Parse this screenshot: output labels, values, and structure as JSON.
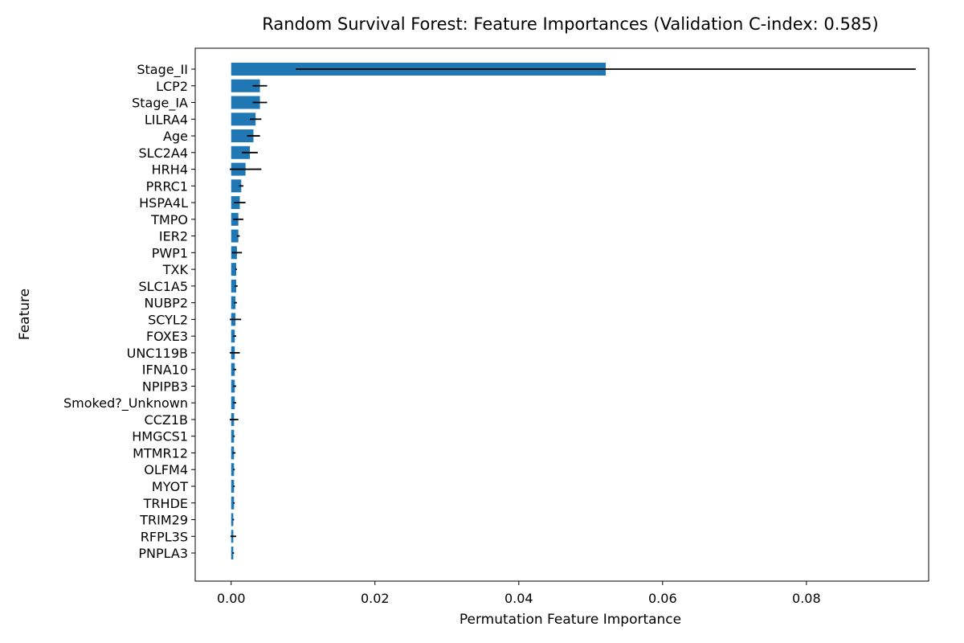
{
  "chart_data": {
    "type": "bar",
    "orientation": "horizontal",
    "title": "Random Survival Forest: Feature Importances (Validation C-index: 0.585)",
    "xlabel": "Permutation Feature Importance",
    "ylabel": "Feature",
    "xlim": [
      -0.005,
      0.097
    ],
    "xticks": [
      0.0,
      0.02,
      0.04,
      0.06,
      0.08
    ],
    "xtick_labels": [
      "0.00",
      "0.02",
      "0.04",
      "0.06",
      "0.08"
    ],
    "bar_color": "#1f77b4",
    "error_color": "#000000",
    "categories": [
      "Stage_II",
      "LCP2",
      "Stage_IA",
      "LILRA4",
      "Age",
      "SLC2A4",
      "HRH4",
      "PRRC1",
      "HSPA4L",
      "TMPO",
      "IER2",
      "PWP1",
      "TXK",
      "SLC1A5",
      "NUBP2",
      "SCYL2",
      "FOXE3",
      "UNC119B",
      "IFNA10",
      "NPIPB3",
      "Smoked?_Unknown",
      "CCZ1B",
      "HMGCS1",
      "MTMR12",
      "OLFM4",
      "MYOT",
      "TRHDE",
      "TRIM29",
      "RFPL3S",
      "PNPLA3"
    ],
    "values": [
      0.0521,
      0.004,
      0.004,
      0.0034,
      0.0031,
      0.0026,
      0.002,
      0.0014,
      0.0012,
      0.001,
      0.001,
      0.0008,
      0.0007,
      0.0007,
      0.0006,
      0.0006,
      0.0005,
      0.0005,
      0.0005,
      0.0005,
      0.0005,
      0.0004,
      0.0004,
      0.0004,
      0.0004,
      0.0004,
      0.0004,
      0.0003,
      0.0003,
      0.0003
    ],
    "errors": [
      0.0431,
      0.001,
      0.001,
      0.0008,
      0.0009,
      0.0011,
      0.0022,
      0.0003,
      0.0008,
      0.0007,
      0.0002,
      0.0007,
      0.0001,
      0.0002,
      0.0002,
      0.0008,
      0.0002,
      0.0007,
      0.0002,
      0.0002,
      0.0002,
      0.0006,
      0.0001,
      0.0002,
      0.0001,
      0.0001,
      0.0001,
      0.0001,
      0.0004,
      0.0001
    ]
  }
}
